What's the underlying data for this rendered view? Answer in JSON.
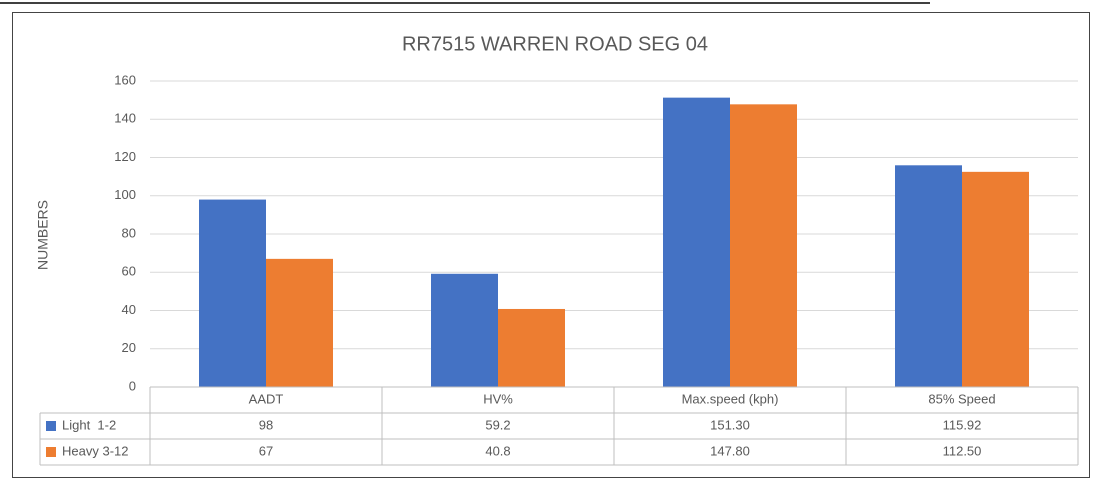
{
  "chart_data": {
    "type": "bar",
    "title": "RR7515 WARREN ROAD SEG 04",
    "y_label": "NUMBERS",
    "categories": [
      "AADT",
      "HV%",
      "Max.speed (kph)",
      "85% Speed"
    ],
    "series": [
      {
        "name": "Light  1-2",
        "color": "#4472c4",
        "values": [
          98,
          59.2,
          151.3,
          115.92
        ],
        "value_labels": [
          "98",
          "59.2",
          "151.30",
          "115.92"
        ]
      },
      {
        "name": "Heavy 3-12",
        "color": "#ed7d31",
        "values": [
          67,
          40.8,
          147.8,
          112.5
        ],
        "value_labels": [
          "67",
          "40.8",
          "147.80",
          "112.50"
        ]
      }
    ],
    "ylim": [
      0,
      160
    ],
    "yticks": [
      0,
      20,
      40,
      60,
      80,
      100,
      120,
      140,
      160
    ],
    "grid": true,
    "data_table": true
  }
}
